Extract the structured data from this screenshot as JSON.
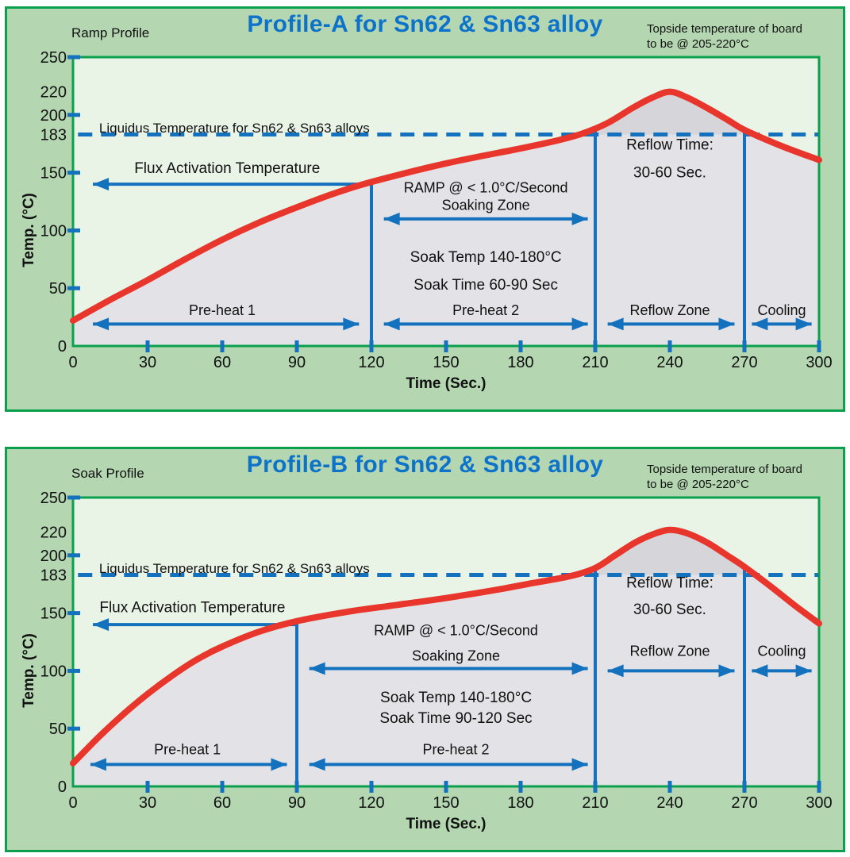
{
  "colors": {
    "panel_bg": "#b4d7b1",
    "plot_bg": "#e9f4e7",
    "under_curve_fill": "#e3e3e7",
    "reflow_peak_fill": "#d6d6da",
    "axis_green": "#0aa04e",
    "line_blue": "#1371bd",
    "title_blue": "#0d72c9",
    "curve_red": "#e8362c",
    "text_dark": "#111111"
  },
  "chart_data": [
    {
      "type": "line",
      "profile_label": "Ramp Profile",
      "title": "Profile-A for Sn62 & Sn63 alloy",
      "topside_note_line1": "Topside temperature of board",
      "topside_note_line2": "to be @ 205-220°C",
      "xlabel": "Time (Sec.)",
      "ylabel": "Temp. (°C)",
      "xlim": [
        0,
        300
      ],
      "ylim": [
        0,
        250
      ],
      "x_ticks": [
        0,
        30,
        60,
        90,
        120,
        150,
        180,
        210,
        240,
        270,
        300
      ],
      "y_ticks": [
        250,
        220,
        200,
        183,
        150,
        100,
        50,
        0
      ],
      "y_tick_marks": [
        250,
        200,
        150,
        100,
        50
      ],
      "liquidus_value": 183,
      "dividers": [
        120,
        210,
        270
      ],
      "curve": [
        [
          0,
          22
        ],
        [
          15,
          40
        ],
        [
          30,
          57
        ],
        [
          45,
          75
        ],
        [
          60,
          92
        ],
        [
          75,
          107
        ],
        [
          90,
          120
        ],
        [
          105,
          132
        ],
        [
          120,
          142
        ],
        [
          150,
          158
        ],
        [
          180,
          171
        ],
        [
          195,
          178
        ],
        [
          205,
          184
        ],
        [
          215,
          193
        ],
        [
          225,
          206
        ],
        [
          233,
          215
        ],
        [
          240,
          220
        ],
        [
          247,
          215
        ],
        [
          255,
          206
        ],
        [
          263,
          196
        ],
        [
          270,
          187
        ],
        [
          285,
          173
        ],
        [
          300,
          161
        ]
      ],
      "annotations": [
        {
          "name": "liquidus-label",
          "text": "Liquidus Temperature for Sn62 & Sn63 alloys",
          "x": 10.5,
          "y": 189,
          "size": 17,
          "anchor": "start"
        },
        {
          "name": "flux-activation-label",
          "text": "Flux Activation Temperature",
          "x": 62,
          "y": 154,
          "size": 19
        },
        {
          "name": "ramp-rate-label",
          "text": "RAMP @ < 1.0°C/Second",
          "x": 166,
          "y": 137,
          "size": 18
        },
        {
          "name": "soaking-zone-label",
          "text": "Soaking Zone",
          "x": 166,
          "y": 122,
          "size": 18
        },
        {
          "name": "soak-temp-label",
          "text": "Soak Temp 140-180°C",
          "x": 166,
          "y": 77,
          "size": 19
        },
        {
          "name": "soak-time-label",
          "text": "Soak Time 60-90 Sec",
          "x": 166,
          "y": 53,
          "size": 19
        },
        {
          "name": "preheat1-label",
          "text": "Pre-heat 1",
          "x": 60,
          "y": 31,
          "size": 18
        },
        {
          "name": "preheat2-label",
          "text": "Pre-heat 2",
          "x": 166,
          "y": 31,
          "size": 18
        },
        {
          "name": "reflow-time-label-line1",
          "text": "Reflow Time:",
          "x": 240,
          "y": 174,
          "size": 19
        },
        {
          "name": "reflow-time-label-line2",
          "text": "30-60 Sec.",
          "x": 240,
          "y": 150,
          "size": 19
        },
        {
          "name": "reflow-zone-label",
          "text": "Reflow Zone",
          "x": 240,
          "y": 31,
          "size": 18
        },
        {
          "name": "cooling-label",
          "text": "Cooling",
          "x": 285,
          "y": 31,
          "size": 18
        }
      ],
      "arrows": [
        {
          "name": "flux-activation-arrow",
          "a": [
            120,
            140
          ],
          "b": [
            8,
            140
          ],
          "double": false
        },
        {
          "name": "soaking-zone-arrow",
          "a": [
            125,
            110
          ],
          "b": [
            207,
            110
          ],
          "double": true
        },
        {
          "name": "preheat1-arrow",
          "a": [
            8,
            19
          ],
          "b": [
            115,
            19
          ],
          "double": true
        },
        {
          "name": "preheat2-arrow",
          "a": [
            125,
            19
          ],
          "b": [
            207,
            19
          ],
          "double": true
        },
        {
          "name": "reflow-zone-arrow",
          "a": [
            215,
            19
          ],
          "b": [
            266,
            19
          ],
          "double": true
        },
        {
          "name": "cooling-arrow",
          "a": [
            273,
            19
          ],
          "b": [
            297,
            19
          ],
          "double": true
        }
      ]
    },
    {
      "type": "line",
      "profile_label": "Soak Profile",
      "title": "Profile-B for Sn62 & Sn63 alloy",
      "topside_note_line1": "Topside temperature of board",
      "topside_note_line2": "to be @ 205-220°C",
      "xlabel": "Time (Sec.)",
      "ylabel": "Temp. (°C)",
      "xlim": [
        0,
        300
      ],
      "ylim": [
        0,
        250
      ],
      "x_ticks": [
        0,
        30,
        60,
        90,
        120,
        150,
        180,
        210,
        240,
        270,
        300
      ],
      "y_ticks": [
        250,
        220,
        200,
        183,
        150,
        100,
        50,
        0
      ],
      "y_tick_marks": [
        250,
        200,
        150,
        100,
        50
      ],
      "liquidus_value": 183,
      "dividers": [
        90,
        210,
        270
      ],
      "curve": [
        [
          0,
          20
        ],
        [
          10,
          42
        ],
        [
          20,
          62
        ],
        [
          30,
          80
        ],
        [
          40,
          96
        ],
        [
          50,
          110
        ],
        [
          60,
          121
        ],
        [
          75,
          134
        ],
        [
          90,
          143
        ],
        [
          110,
          151
        ],
        [
          130,
          157
        ],
        [
          150,
          163
        ],
        [
          170,
          170
        ],
        [
          185,
          176
        ],
        [
          200,
          182
        ],
        [
          210,
          189
        ],
        [
          218,
          200
        ],
        [
          226,
          211
        ],
        [
          233,
          218
        ],
        [
          240,
          222
        ],
        [
          247,
          219
        ],
        [
          255,
          211
        ],
        [
          263,
          200
        ],
        [
          270,
          190
        ],
        [
          280,
          174
        ],
        [
          290,
          157
        ],
        [
          300,
          141
        ]
      ],
      "annotations": [
        {
          "name": "liquidus-label",
          "text": "Liquidus Temperature for Sn62 & Sn63 alloys",
          "x": 10.5,
          "y": 189,
          "size": 17,
          "anchor": "start"
        },
        {
          "name": "flux-activation-label",
          "text": "Flux Activation Temperature",
          "x": 48,
          "y": 155,
          "size": 19
        },
        {
          "name": "ramp-rate-label",
          "text": "RAMP @ < 1.0°C/Second",
          "x": 154,
          "y": 135,
          "size": 18
        },
        {
          "name": "soaking-zone-label",
          "text": "Soaking Zone",
          "x": 154,
          "y": 113,
          "size": 18
        },
        {
          "name": "soak-temp-label",
          "text": "Soak Temp 140-180°C",
          "x": 154,
          "y": 77,
          "size": 19
        },
        {
          "name": "soak-time-label",
          "text": "Soak Time 90-120 Sec",
          "x": 154,
          "y": 59,
          "size": 19
        },
        {
          "name": "preheat1-label",
          "text": "Pre-heat 1",
          "x": 46,
          "y": 32,
          "size": 18
        },
        {
          "name": "preheat2-label",
          "text": "Pre-heat 2",
          "x": 154,
          "y": 32,
          "size": 18
        },
        {
          "name": "reflow-time-label-line1",
          "text": "Reflow Time:",
          "x": 240,
          "y": 176,
          "size": 19
        },
        {
          "name": "reflow-time-label-line2",
          "text": "30-60 Sec.",
          "x": 240,
          "y": 153,
          "size": 19
        },
        {
          "name": "reflow-zone-label",
          "text": "Reflow Zone",
          "x": 240,
          "y": 117,
          "size": 18
        },
        {
          "name": "cooling-label",
          "text": "Cooling",
          "x": 285,
          "y": 117,
          "size": 18
        }
      ],
      "arrows": [
        {
          "name": "flux-activation-arrow",
          "a": [
            90,
            140
          ],
          "b": [
            8,
            140
          ],
          "double": false
        },
        {
          "name": "soaking-zone-arrow",
          "a": [
            95,
            102
          ],
          "b": [
            207,
            102
          ],
          "double": true
        },
        {
          "name": "preheat1-arrow",
          "a": [
            7,
            19
          ],
          "b": [
            86,
            19
          ],
          "double": true
        },
        {
          "name": "preheat2-arrow",
          "a": [
            95,
            19
          ],
          "b": [
            207,
            19
          ],
          "double": true
        },
        {
          "name": "reflow-zone-arrow",
          "a": [
            215,
            100
          ],
          "b": [
            266,
            100
          ],
          "double": true
        },
        {
          "name": "cooling-arrow",
          "a": [
            273,
            100
          ],
          "b": [
            297,
            100
          ],
          "double": true
        }
      ]
    }
  ]
}
